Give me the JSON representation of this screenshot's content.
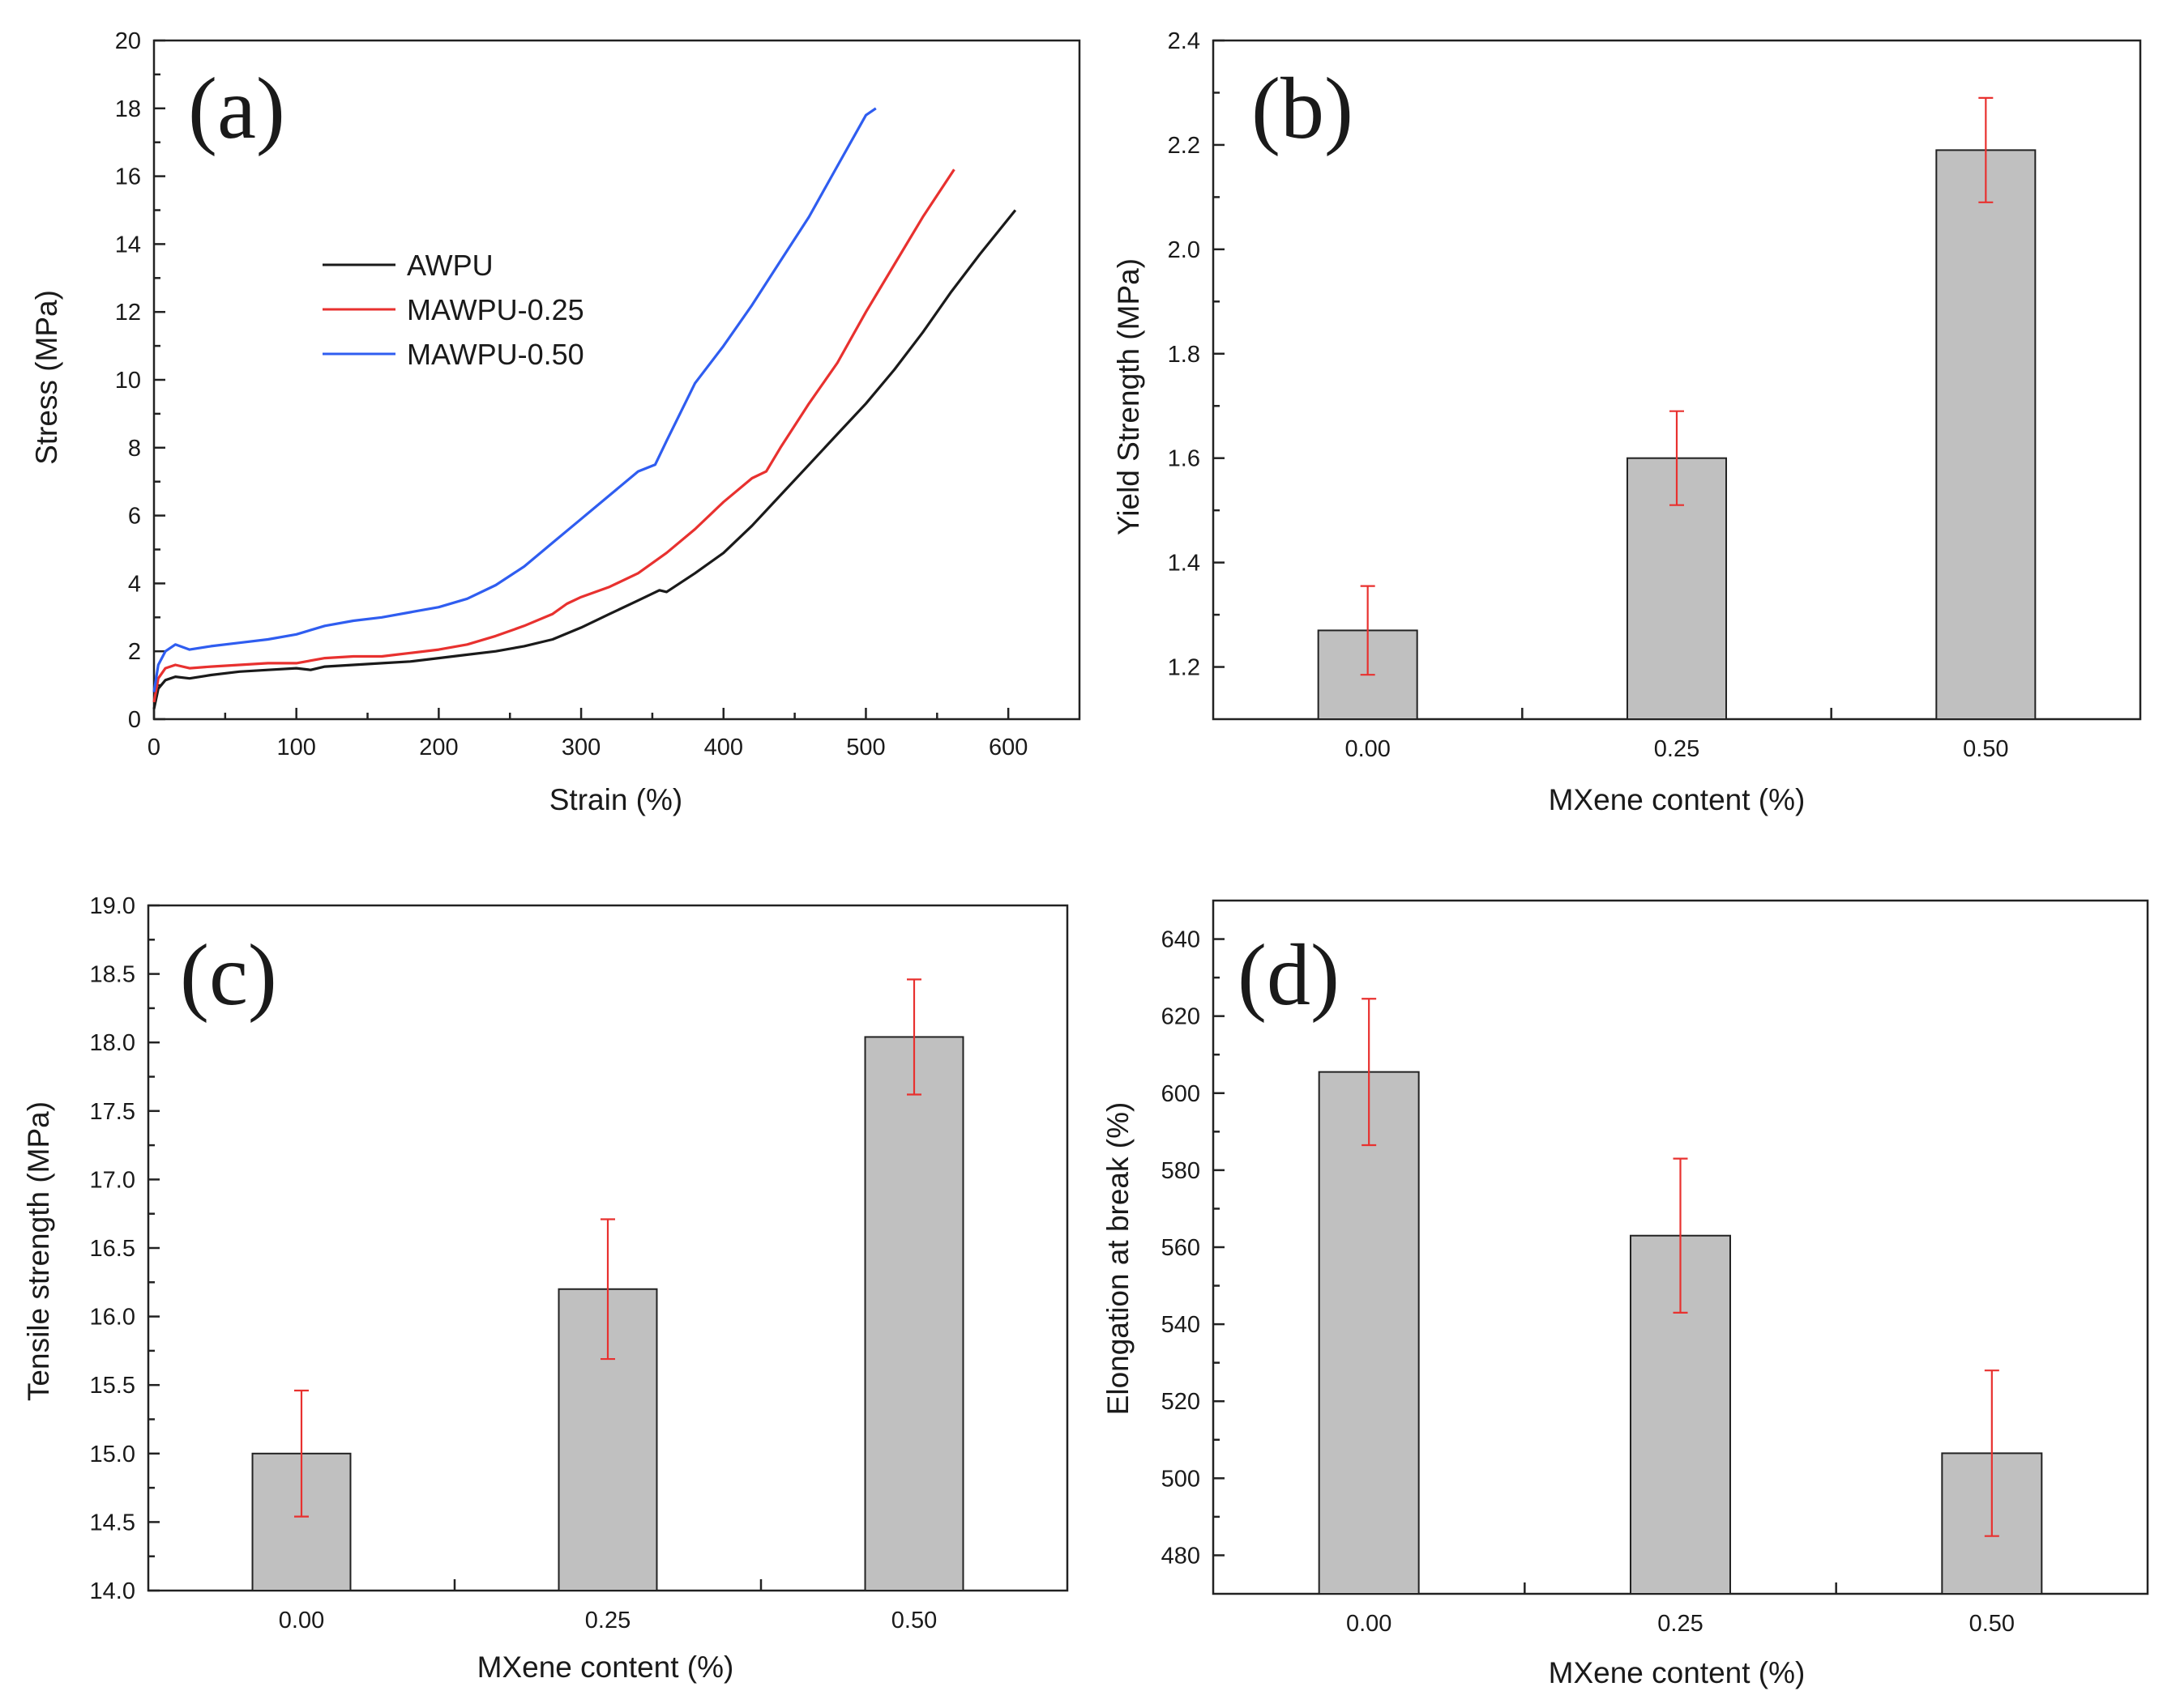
{
  "chart_data": [
    {
      "type": "line",
      "panel_label": "(a)",
      "title": "",
      "xlabel": "Strain (%)",
      "ylabel": "Stress (MPa)",
      "xlim": [
        0,
        650
      ],
      "ylim": [
        0,
        20
      ],
      "xticks": [
        0,
        100,
        200,
        300,
        400,
        500,
        600
      ],
      "yticks": [
        0,
        2,
        4,
        6,
        8,
        10,
        12,
        14,
        16,
        18,
        20
      ],
      "grid": false,
      "legend_position": "top-left",
      "series": [
        {
          "name": "AWPU",
          "color": "#1a1a1a",
          "x": [
            0,
            3,
            8,
            15,
            25,
            40,
            60,
            80,
            100,
            110,
            120,
            140,
            160,
            180,
            200,
            220,
            240,
            260,
            280,
            300,
            320,
            340,
            355,
            360,
            380,
            400,
            420,
            440,
            460,
            480,
            500,
            520,
            540,
            560,
            580,
            605
          ],
          "y": [
            0.3,
            0.9,
            1.15,
            1.25,
            1.2,
            1.3,
            1.4,
            1.45,
            1.5,
            1.45,
            1.55,
            1.6,
            1.65,
            1.7,
            1.8,
            1.9,
            2.0,
            2.15,
            2.35,
            2.7,
            3.1,
            3.5,
            3.8,
            3.75,
            4.3,
            4.9,
            5.7,
            6.6,
            7.5,
            8.4,
            9.3,
            10.3,
            11.4,
            12.6,
            13.7,
            15.0
          ]
        },
        {
          "name": "MAWPU-0.25",
          "color": "#e8312f",
          "x": [
            0,
            3,
            8,
            15,
            25,
            40,
            60,
            80,
            100,
            120,
            140,
            160,
            170,
            180,
            200,
            220,
            240,
            260,
            280,
            290,
            300,
            320,
            340,
            360,
            380,
            400,
            420,
            430,
            440,
            460,
            480,
            500,
            520,
            540,
            562
          ],
          "y": [
            0.5,
            1.2,
            1.5,
            1.6,
            1.5,
            1.55,
            1.6,
            1.65,
            1.65,
            1.8,
            1.85,
            1.85,
            1.9,
            1.95,
            2.05,
            2.2,
            2.45,
            2.75,
            3.1,
            3.4,
            3.6,
            3.9,
            4.3,
            4.9,
            5.6,
            6.4,
            7.1,
            7.3,
            8.0,
            9.3,
            10.5,
            12.0,
            13.4,
            14.8,
            16.2
          ]
        },
        {
          "name": "MAWPU-0.50",
          "color": "#2f5df0",
          "x": [
            0,
            3,
            8,
            15,
            25,
            40,
            60,
            80,
            100,
            120,
            140,
            160,
            180,
            200,
            220,
            240,
            260,
            280,
            300,
            320,
            340,
            352,
            360,
            380,
            400,
            420,
            440,
            460,
            480,
            500,
            507
          ],
          "y": [
            0.8,
            1.6,
            2.0,
            2.2,
            2.05,
            2.15,
            2.25,
            2.35,
            2.5,
            2.75,
            2.9,
            3.0,
            3.15,
            3.3,
            3.55,
            3.95,
            4.5,
            5.2,
            5.9,
            6.6,
            7.3,
            7.5,
            8.2,
            9.9,
            11.0,
            12.2,
            13.5,
            14.8,
            16.3,
            17.8,
            18.0
          ]
        }
      ]
    },
    {
      "type": "bar",
      "panel_label": "(b)",
      "title": "",
      "xlabel": "MXene content (%)",
      "ylabel": "Yield Strength (MPa)",
      "categories": [
        "0.00",
        "0.25",
        "0.50"
      ],
      "values": [
        1.27,
        1.6,
        2.19
      ],
      "errors": [
        0.085,
        0.09,
        0.1
      ],
      "ylim": [
        1.1,
        2.4
      ],
      "yticks": [
        1.2,
        1.4,
        1.6,
        1.8,
        2.0,
        2.2,
        2.4
      ],
      "ytick_labels": [
        "1.2",
        "1.4",
        "1.6",
        "1.8",
        "2.0",
        "2.2",
        "2.4"
      ],
      "grid": false
    },
    {
      "type": "bar",
      "panel_label": "(c)",
      "title": "",
      "xlabel": "MXene content (%)",
      "ylabel": "Tensile strength (MPa)",
      "categories": [
        "0.00",
        "0.25",
        "0.50"
      ],
      "values": [
        15.0,
        16.2,
        18.04
      ],
      "errors": [
        0.46,
        0.51,
        0.42
      ],
      "ylim": [
        14.0,
        19.0
      ],
      "yticks": [
        14.0,
        14.5,
        15.0,
        15.5,
        16.0,
        16.5,
        17.0,
        17.5,
        18.0,
        18.5,
        19.0
      ],
      "ytick_labels": [
        "14.0",
        "14.5",
        "15.0",
        "15.5",
        "16.0",
        "16.5",
        "17.0",
        "17.5",
        "18.0",
        "18.5",
        "19.0"
      ],
      "grid": false
    },
    {
      "type": "bar",
      "panel_label": "(d)",
      "title": "",
      "xlabel": "MXene content (%)",
      "ylabel": "Elongation at break (%)",
      "categories": [
        "0.00",
        "0.25",
        "0.50"
      ],
      "values": [
        605.5,
        563.0,
        506.5
      ],
      "errors": [
        19,
        20,
        21.5
      ],
      "ylim": [
        470,
        650
      ],
      "yticks": [
        480,
        500,
        520,
        540,
        560,
        580,
        600,
        620,
        640
      ],
      "ytick_labels": [
        "480",
        "500",
        "520",
        "540",
        "560",
        "580",
        "600",
        "620",
        "640"
      ],
      "grid": false
    }
  ]
}
